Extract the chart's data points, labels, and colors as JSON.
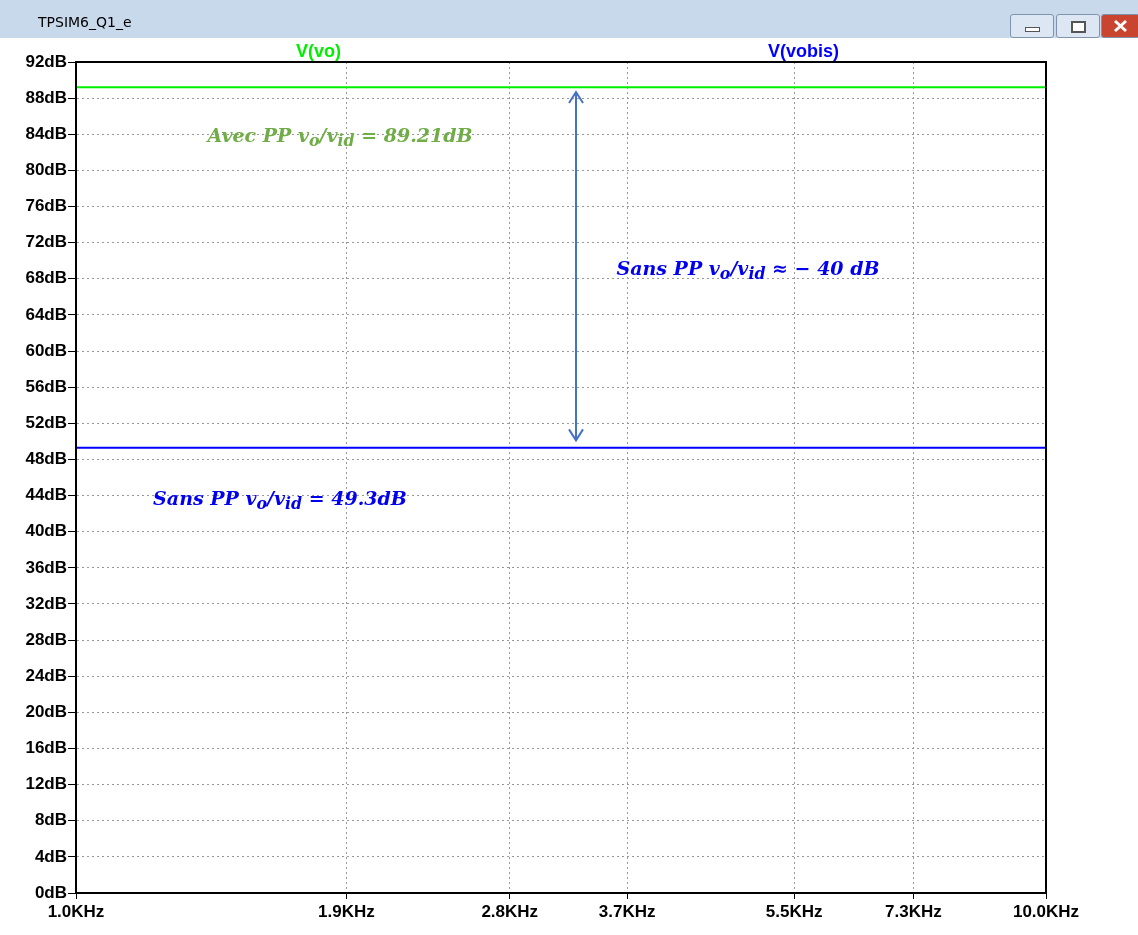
{
  "chart_data": {
    "type": "line",
    "title": "TPSIM6_Q1_e",
    "series": [
      {
        "name": "V(vo)",
        "color": "#00ee00",
        "values": [
          89.2,
          89.2
        ]
      },
      {
        "name": "V(vobis)",
        "color": "#0000ff",
        "values": [
          49.3,
          49.3
        ]
      }
    ],
    "x": [
      1,
      10
    ],
    "log": "x",
    "xlim": [
      1,
      10
    ],
    "xticks": [
      {
        "value": 1,
        "label": "1.0KHz"
      },
      {
        "value": 1.9,
        "label": "1.9KHz"
      },
      {
        "value": 2.8,
        "label": "2.8KHz"
      },
      {
        "value": 3.7,
        "label": "3.7KHz"
      },
      {
        "value": 5.5,
        "label": "5.5KHz"
      },
      {
        "value": 7.3,
        "label": "7.3KHz"
      },
      {
        "value": 10,
        "label": "10.0KHz"
      }
    ],
    "ylim": [
      0,
      92
    ],
    "yticks": [
      {
        "value": 0,
        "label": "0dB"
      },
      {
        "value": 4,
        "label": "4dB"
      },
      {
        "value": 8,
        "label": "8dB"
      },
      {
        "value": 12,
        "label": "12dB"
      },
      {
        "value": 16,
        "label": "16dB"
      },
      {
        "value": 20,
        "label": "20dB"
      },
      {
        "value": 24,
        "label": "24dB"
      },
      {
        "value": 28,
        "label": "28dB"
      },
      {
        "value": 32,
        "label": "32dB"
      },
      {
        "value": 36,
        "label": "36dB"
      },
      {
        "value": 40,
        "label": "40dB"
      },
      {
        "value": 44,
        "label": "44dB"
      },
      {
        "value": 48,
        "label": "48dB"
      },
      {
        "value": 52,
        "label": "52dB"
      },
      {
        "value": 56,
        "label": "56dB"
      },
      {
        "value": 60,
        "label": "60dB"
      },
      {
        "value": 64,
        "label": "64dB"
      },
      {
        "value": 68,
        "label": "68dB"
      },
      {
        "value": 72,
        "label": "72dB"
      },
      {
        "value": 76,
        "label": "76dB"
      },
      {
        "value": 80,
        "label": "80dB"
      },
      {
        "value": 84,
        "label": "84dB"
      },
      {
        "value": 88,
        "label": "88dB"
      },
      {
        "value": 92,
        "label": "92dB"
      }
    ],
    "grid": true,
    "legend": "top",
    "marker": "none",
    "line_style": "solid",
    "annotations": [
      "Avec PP  v$_{o}$/v$_{id}$ = 89.21dB",
      "Sans PP  v$_{o}$/v$_{id}$ = 49.3dB",
      "Sans PP  v$_{o}$/v$_{id}$ ≈ − 40 dB"
    ]
  }
}
